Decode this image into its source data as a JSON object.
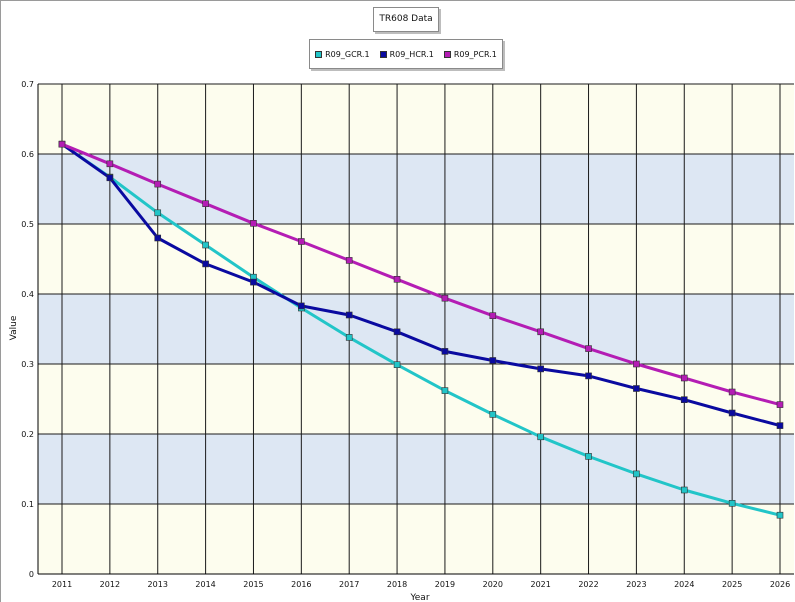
{
  "chart_data": {
    "type": "line",
    "title": "TR608 Data",
    "xlabel": "Year",
    "ylabel": "Value",
    "categories": [
      "2011",
      "2012",
      "2013",
      "2014",
      "2015",
      "2016",
      "2017",
      "2018",
      "2019",
      "2020",
      "2021",
      "2022",
      "2023",
      "2024",
      "2025",
      "2026"
    ],
    "ylim": [
      0,
      0.7
    ],
    "yticks": [
      "0",
      "0.1",
      "0.2",
      "0.3",
      "0.4",
      "0.5",
      "0.6",
      "0.7"
    ],
    "grid": true,
    "legend_position": "top-center",
    "series": [
      {
        "name": "R09_GCR.1",
        "color": "#22c5c8",
        "values": [
          0.614,
          0.567,
          0.516,
          0.47,
          0.424,
          0.38,
          0.338,
          0.299,
          0.262,
          0.228,
          0.196,
          0.168,
          0.143,
          0.12,
          0.101,
          0.084
        ]
      },
      {
        "name": "R09_HCR.1",
        "color": "#0a0aa0",
        "values": [
          0.614,
          0.566,
          0.48,
          0.443,
          0.417,
          0.383,
          0.37,
          0.346,
          0.318,
          0.305,
          0.293,
          0.283,
          0.265,
          0.249,
          0.23,
          0.212
        ]
      },
      {
        "name": "R09_PCR.1",
        "color": "#b41db4",
        "values": [
          0.614,
          0.586,
          0.557,
          0.529,
          0.501,
          0.475,
          0.448,
          0.421,
          0.394,
          0.369,
          0.346,
          0.322,
          0.3,
          0.28,
          0.26,
          0.242
        ]
      }
    ]
  }
}
